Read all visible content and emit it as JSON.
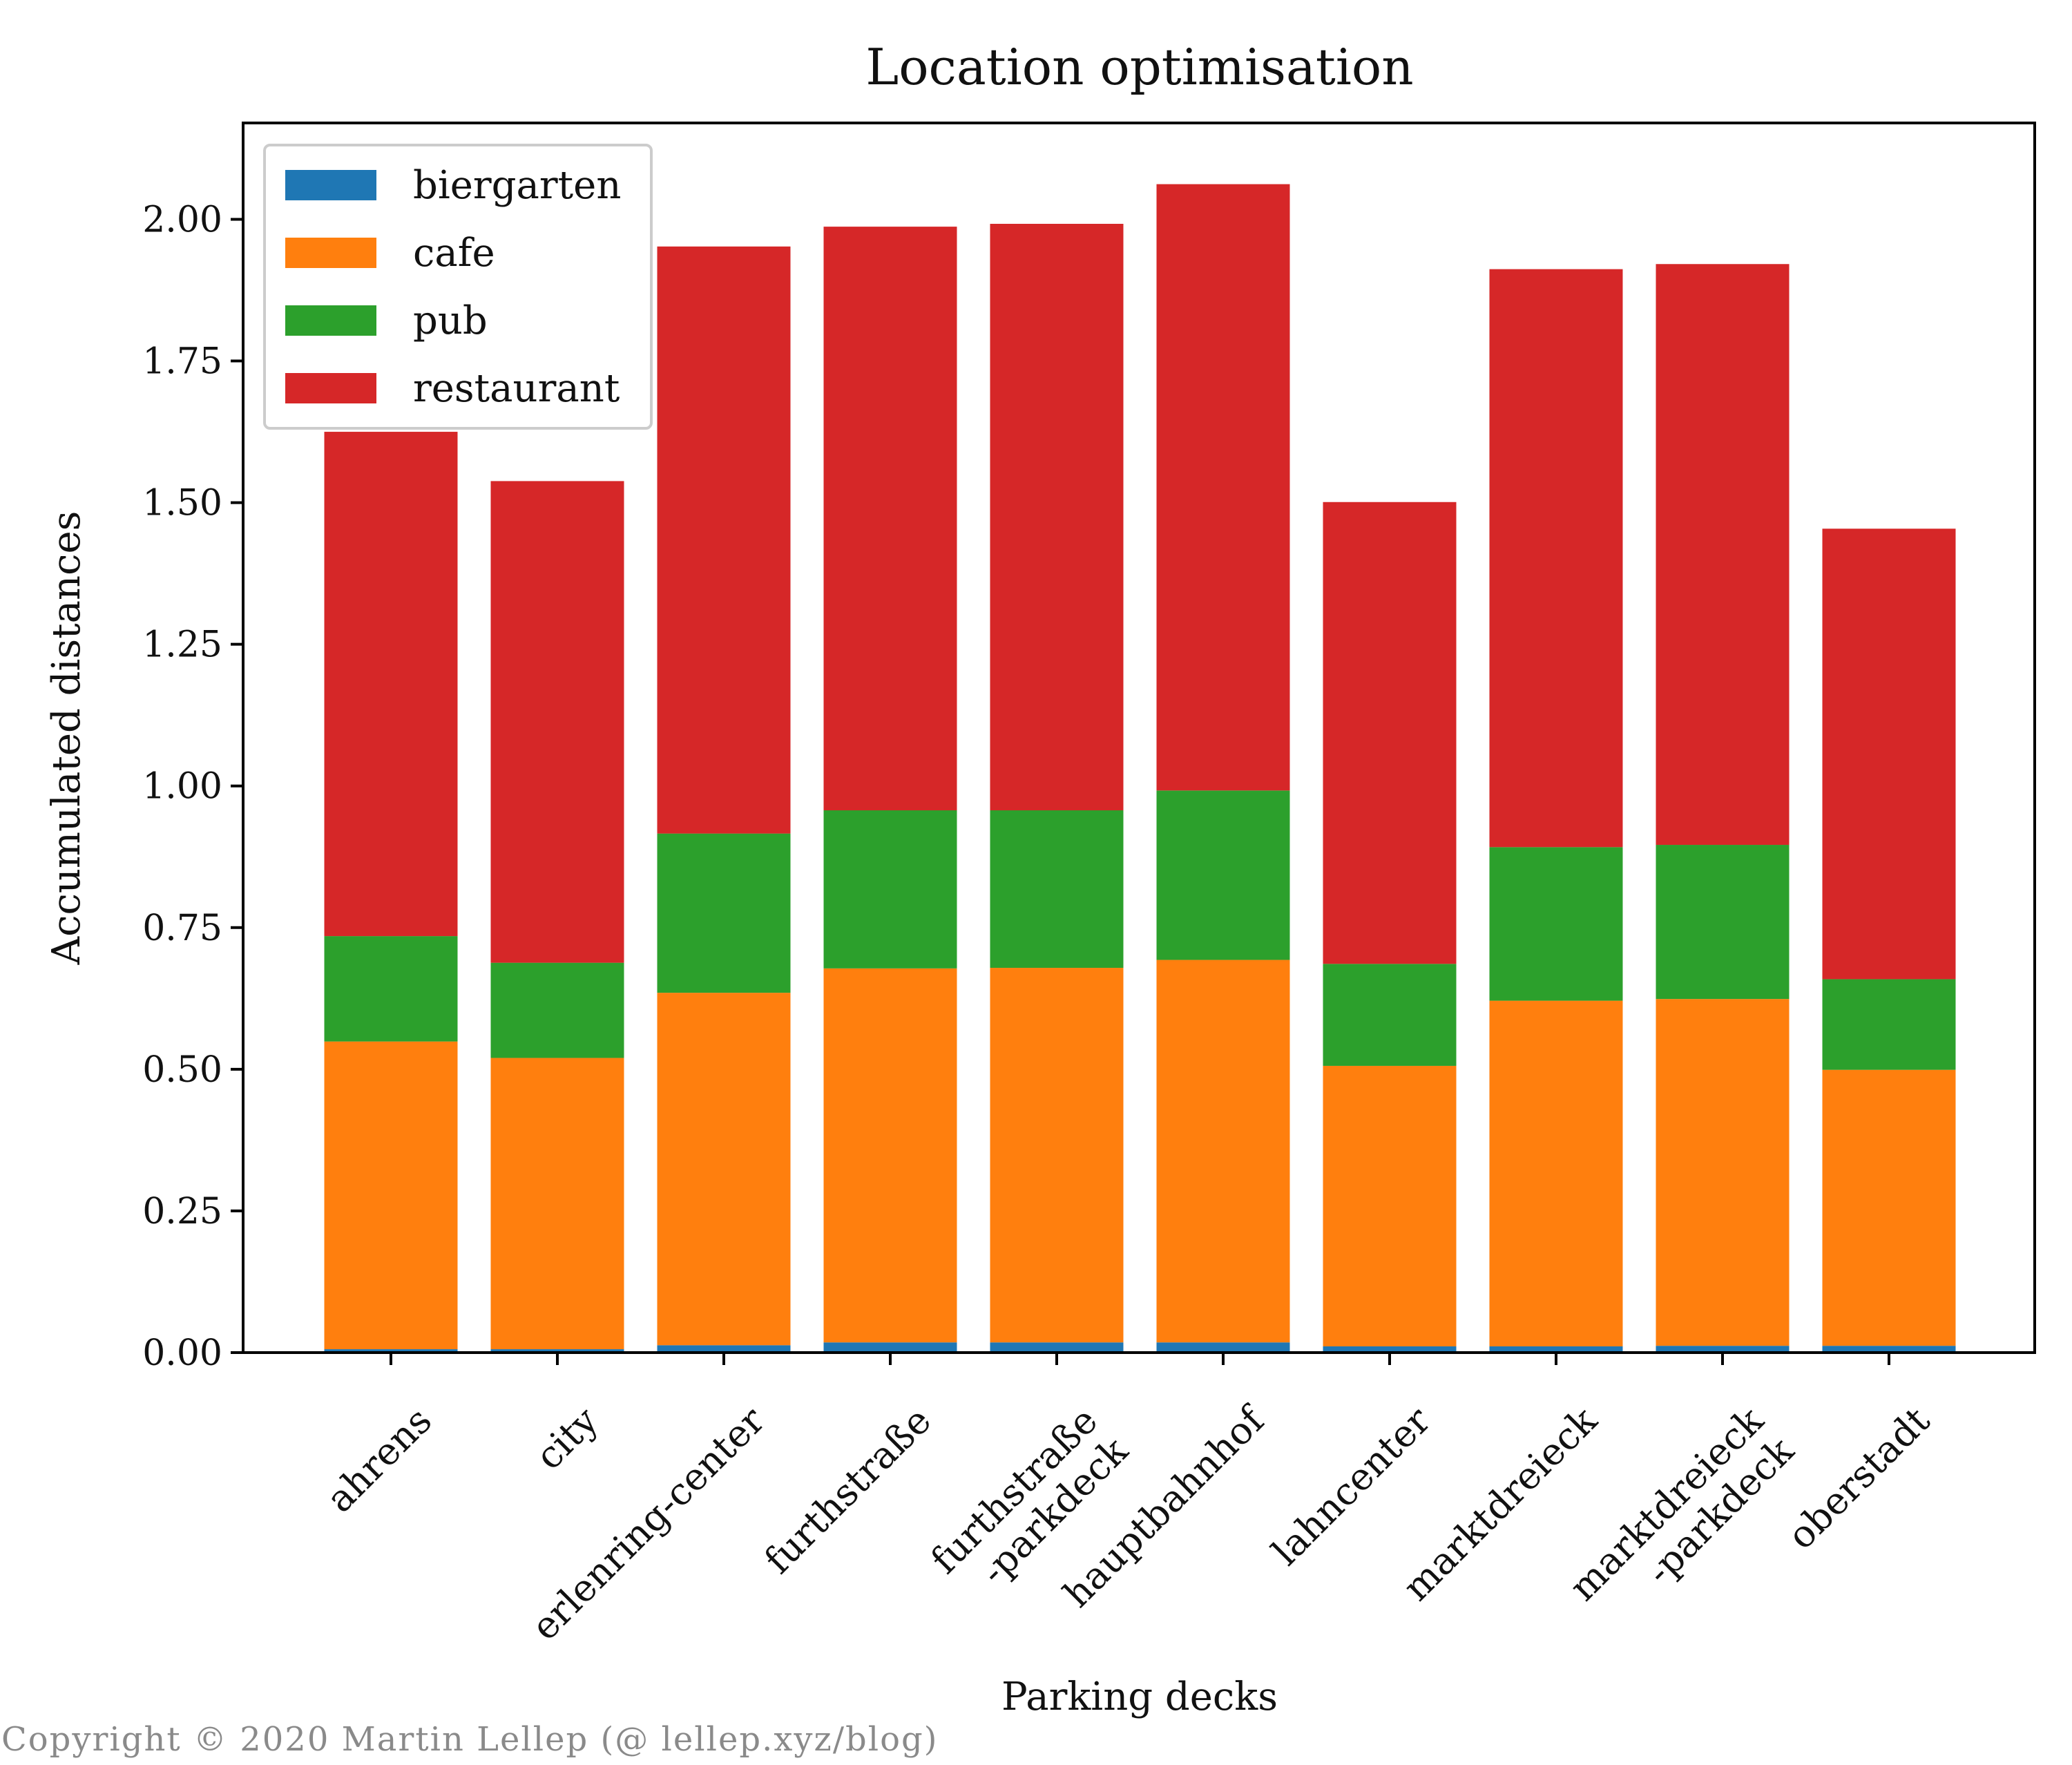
{
  "chart_data": {
    "type": "bar",
    "stacked": true,
    "title": "Location optimisation",
    "xlabel": "Parking decks",
    "ylabel": "Accumulated distances",
    "ylim": [
      0,
      2.17
    ],
    "yticks": [
      "0.00",
      "0.25",
      "0.50",
      "0.75",
      "1.00",
      "1.25",
      "1.50",
      "1.75",
      "2.00"
    ],
    "categories": [
      "ahrens",
      "city",
      "erlenring-center",
      "furthstraße",
      "furthstraße\n-parkdeck",
      "hauptbahnhof",
      "lahncenter",
      "marktdreieck",
      "marktdreieck\n-parkdeck",
      "oberstadt"
    ],
    "legend_position": "top-left",
    "grid": false,
    "series": [
      {
        "name": "biergarten",
        "color": "#1f77b4",
        "values": [
          0.006,
          0.006,
          0.013,
          0.018,
          0.018,
          0.018,
          0.011,
          0.011,
          0.012,
          0.012
        ]
      },
      {
        "name": "cafe",
        "color": "#ff7f0e",
        "values": [
          0.543,
          0.514,
          0.622,
          0.66,
          0.661,
          0.675,
          0.495,
          0.61,
          0.612,
          0.487
        ]
      },
      {
        "name": "pub",
        "color": "#2ca02c",
        "values": [
          0.186,
          0.168,
          0.281,
          0.279,
          0.278,
          0.299,
          0.18,
          0.271,
          0.272,
          0.16
        ]
      },
      {
        "name": "restaurant",
        "color": "#d62728",
        "values": [
          0.89,
          0.85,
          1.036,
          1.03,
          1.035,
          1.07,
          0.815,
          1.02,
          1.025,
          0.795
        ]
      }
    ]
  },
  "copyright": "Copyright © 2020 Martin Lellep (@ lellep.xyz/blog)"
}
